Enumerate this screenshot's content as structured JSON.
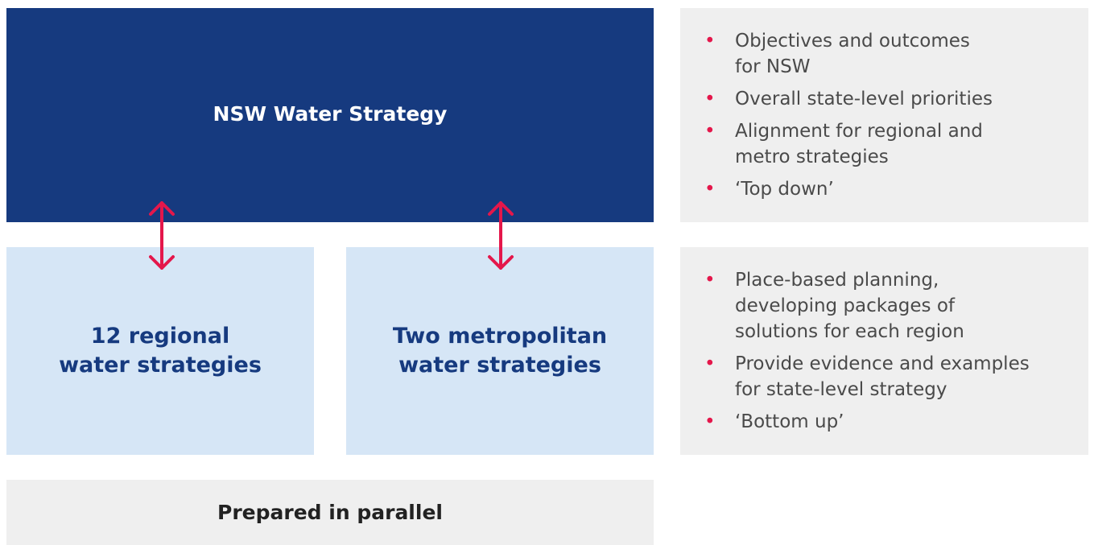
{
  "top_box": {
    "title": "NSW Water Strategy"
  },
  "regional_box": {
    "lines": [
      "12 regional",
      "water strategies"
    ]
  },
  "metro_box": {
    "lines": [
      "Two metropolitan",
      "water strategies"
    ]
  },
  "bottom_box": {
    "title": "Prepared in parallel"
  },
  "top_notes": {
    "items": [
      [
        "Objectives and outcomes",
        "for NSW"
      ],
      [
        "Overall state-level priorities"
      ],
      [
        "Alignment for regional and",
        "metro strategies"
      ],
      [
        "‘Top down’"
      ]
    ]
  },
  "bottom_notes": {
    "items": [
      [
        "Place-based planning,",
        "developing packages of",
        "solutions for each region"
      ],
      [
        "Provide evidence and examples",
        "for state-level strategy"
      ],
      [
        "‘Bottom up’"
      ]
    ]
  }
}
